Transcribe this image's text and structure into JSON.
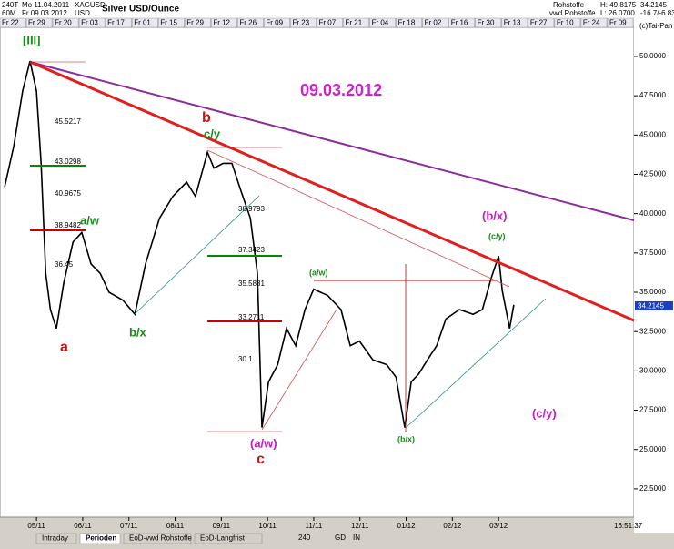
{
  "header": {
    "period": "240T",
    "from_date": "Mo 11.04.2011",
    "symbol": "XAGUSD",
    "interval": "60M",
    "to_date": "Fr 09.03.2012",
    "currency": "USD",
    "title": "Silver USD/Ounce",
    "group": "Rohstoffe",
    "source": "vwd Rohstoffe",
    "high": "H: 49.8175",
    "low": "L: 26.0700",
    "last": "34.2145",
    "change": "-16.7/-6.83",
    "copyright": "(c)Tai-Pan"
  },
  "date_tabs": [
    "Fr 22",
    "Fr 29",
    "Fr 20",
    "Fr 03",
    "Fr 17",
    "Fr 01",
    "Fr 15",
    "Fr 29",
    "Fr 12",
    "Fr 26",
    "Fr 09",
    "Fr 23",
    "Fr 07",
    "Fr 21",
    "Fr 04",
    "Fr 18",
    "Fr 02",
    "Fr 16",
    "Fr 30",
    "Fr 13",
    "Fr 27",
    "Fr 10",
    "Fr 24",
    "Fr 09"
  ],
  "chart": {
    "type": "line",
    "color": "#000000",
    "x": [
      -0.69,
      -0.49,
      -0.3,
      -0.14,
      0,
      0.1,
      0.2,
      0.3,
      0.43,
      0.59,
      0.79,
      0.98,
      1.18,
      1.38,
      1.57,
      1.87,
      2.13,
      2.36,
      2.66,
      2.95,
      3.25,
      3.44,
      3.7,
      3.84,
      4.04,
      4.23,
      4.43,
      4.63,
      4.78,
      4.88,
      5.02,
      5.22,
      5.41,
      5.61,
      5.81,
      6.0,
      6.3,
      6.59,
      6.79,
      6.99,
      7.28,
      7.58,
      7.78,
      7.97,
      8.11,
      8.27,
      8.46,
      8.66,
      8.86,
      9.15,
      9.45,
      9.65,
      9.84,
      10.0,
      10.08,
      10.24,
      10.33
    ],
    "values": [
      41.7,
      44.3,
      47.8,
      49.7,
      47.8,
      43.2,
      36.2,
      33.9,
      32.7,
      35.6,
      38.2,
      38.8,
      36.8,
      36.2,
      35.0,
      34.5,
      33.6,
      36.8,
      39.7,
      41.1,
      42.0,
      41.1,
      43.9,
      42.9,
      43.2,
      43.2,
      41.4,
      39.7,
      36.2,
      26.4,
      29.3,
      30.4,
      32.7,
      31.6,
      33.9,
      35.2,
      34.8,
      33.9,
      31.6,
      31.9,
      30.7,
      30.4,
      29.6,
      26.4,
      29.3,
      29.8,
      30.7,
      31.6,
      33.3,
      33.9,
      33.6,
      33.9,
      35.9,
      37.3,
      35.1,
      32.7,
      34.2
    ],
    "xlim": [
      -0.79,
      12.93
    ],
    "ylim": [
      20.7,
      51.85
    ],
    "xticks": [
      {
        "value": 0,
        "label": "05/11"
      },
      {
        "value": 1,
        "label": "06/11"
      },
      {
        "value": 2,
        "label": "07/11"
      },
      {
        "value": 3,
        "label": "08/11"
      },
      {
        "value": 4,
        "label": "09/11"
      },
      {
        "value": 5,
        "label": "10/11"
      },
      {
        "value": 6,
        "label": "11/11"
      },
      {
        "value": 7,
        "label": "12/11"
      },
      {
        "value": 8,
        "label": "01/12"
      },
      {
        "value": 9,
        "label": "02/12"
      },
      {
        "value": 10,
        "label": "03/12"
      }
    ],
    "yticks": [
      {
        "value": 50,
        "label": "50.0000"
      },
      {
        "value": 47.5,
        "label": "47.5000"
      },
      {
        "value": 45,
        "label": "45.0000"
      },
      {
        "value": 42.5,
        "label": "42.5000"
      },
      {
        "value": 40,
        "label": "40.0000"
      },
      {
        "value": 37.5,
        "label": "37.5000"
      },
      {
        "value": 35,
        "label": "35.0000"
      },
      {
        "value": 32.5,
        "label": "32.5000"
      },
      {
        "value": 30,
        "label": "30.0000"
      },
      {
        "value": 27.5,
        "label": "27.5000"
      },
      {
        "value": 25,
        "label": "25.0000"
      },
      {
        "value": 22.5,
        "label": "22.5000"
      }
    ],
    "annotations": {
      "wave3": "[III]",
      "a": "a",
      "b": "b",
      "c_y": "c/y",
      "a_w": "a/w",
      "b_x": "b/x",
      "c": "c",
      "a_w_major": "(a/w)",
      "a_w_minor": "(a/w)",
      "b_x_minor": "(b/x)",
      "b_x_major": "(b/x)",
      "c_y_minor": "(c/y)",
      "c_y_major": "(c/y)",
      "date": "09.03.2012"
    },
    "fib_labels": [
      "45.5217",
      "43.0298",
      "40.9675",
      "38.9482",
      "36.45",
      "38.9793",
      "37.3423",
      "35.5881",
      "33.2711",
      "30.1"
    ]
  },
  "footer": {
    "tabs": [
      "Intraday",
      "Perioden",
      "EoD-vwd Rohstoffe",
      "EoD-Langfrist"
    ],
    "resolution": "240",
    "gd": "GD",
    "in": "IN",
    "time": "16:51:37"
  }
}
